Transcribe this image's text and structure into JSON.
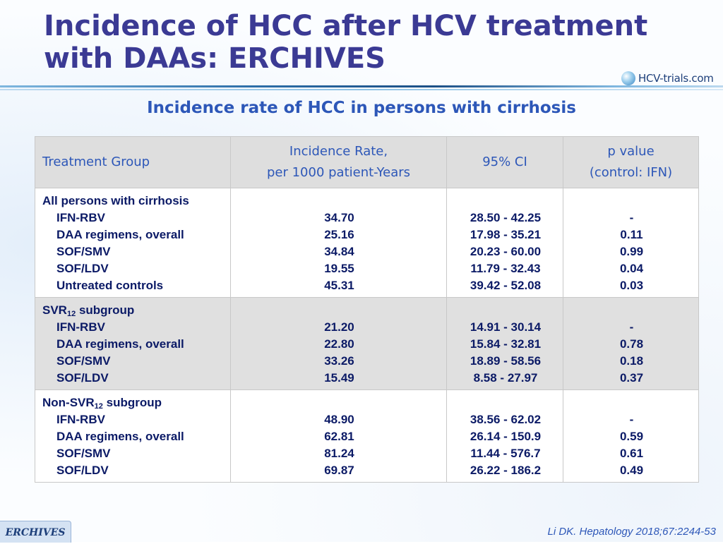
{
  "slide": {
    "title_lines": [
      "Incidence of HCC after HCV treatment",
      "with DAAs: ERCHIVES"
    ],
    "subtitle": "Incidence rate of HCC in persons with cirrhosis",
    "logo_text": "HCV-trials.com",
    "footer_tag": "ERCHIVES",
    "citation": "Li DK. Hepatology 2018;67:2244-53",
    "colors": {
      "title": "#3b3a94",
      "subtitle": "#2d57b8",
      "table_text": "#0b1a66",
      "header_bg": "#dedede"
    }
  },
  "table": {
    "headers": {
      "group": "Treatment Group",
      "rate_line1": "Incidence Rate,",
      "rate_line2": "per 1000 patient-Years",
      "ci": "95% CI",
      "p_line1": "p value",
      "p_line2": "(control: IFN)"
    },
    "groups": [
      {
        "label": "All persons with cirrhosis",
        "rows": [
          {
            "name": "IFN-RBV",
            "rate": "34.70",
            "ci": "28.50 - 42.25",
            "p": "-"
          },
          {
            "name": "DAA regimens, overall",
            "rate": "25.16",
            "ci": "17.98 - 35.21",
            "p": "0.11"
          },
          {
            "name": "SOF/SMV",
            "rate": "34.84",
            "ci": "20.23 - 60.00",
            "p": "0.99"
          },
          {
            "name": "SOF/LDV",
            "rate": "19.55",
            "ci": "11.79 - 32.43",
            "p": "0.04"
          },
          {
            "name": "Untreated controls",
            "rate": "45.31",
            "ci": "39.42 - 52.08",
            "p": "0.03"
          }
        ]
      },
      {
        "label_prefix": "SVR",
        "label_sub": "12",
        "label_suffix": " subgroup",
        "rows": [
          {
            "name": "IFN-RBV",
            "rate": "21.20",
            "ci": "14.91 - 30.14",
            "p": "-"
          },
          {
            "name": "DAA regimens, overall",
            "rate": "22.80",
            "ci": "15.84 - 32.81",
            "p": "0.78"
          },
          {
            "name": "SOF/SMV",
            "rate": "33.26",
            "ci": "18.89 - 58.56",
            "p": "0.18"
          },
          {
            "name": "SOF/LDV",
            "rate": "15.49",
            "ci": "8.58 - 27.97",
            "p": "0.37"
          }
        ]
      },
      {
        "label_prefix": "Non-SVR",
        "label_sub": "12",
        "label_suffix": " subgroup",
        "rows": [
          {
            "name": "IFN-RBV",
            "rate": "48.90",
            "ci": "38.56 - 62.02",
            "p": "-"
          },
          {
            "name": "DAA regimens, overall",
            "rate": "62.81",
            "ci": "26.14 - 150.9",
            "p": "0.59"
          },
          {
            "name": "SOF/SMV",
            "rate": "81.24",
            "ci": "11.44 - 576.7",
            "p": "0.61"
          },
          {
            "name": "SOF/LDV",
            "rate": "69.87",
            "ci": "26.22 - 186.2",
            "p": "0.49"
          }
        ]
      }
    ]
  }
}
